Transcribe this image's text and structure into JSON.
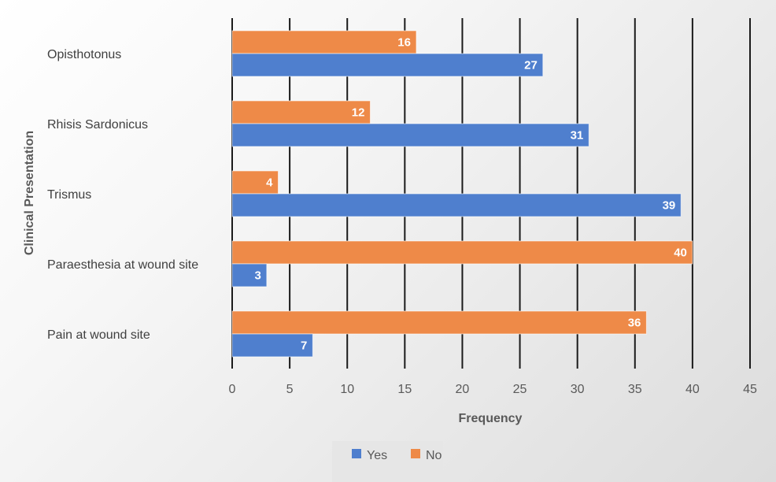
{
  "chart_data": {
    "type": "bar",
    "orientation": "horizontal",
    "categories": [
      "Opisthotonus",
      "Rhisis Sardonicus",
      "Trismus",
      "Paraesthesia at wound site",
      "Pain at wound site"
    ],
    "series": [
      {
        "name": "Yes",
        "values": [
          27,
          31,
          39,
          3,
          7
        ],
        "color": "#4f7fce"
      },
      {
        "name": "No",
        "values": [
          16,
          12,
          4,
          40,
          36
        ],
        "color": "#ee8a48"
      }
    ],
    "xlabel": "Frequency",
    "ylabel": "Clinical Presentation",
    "xlim": [
      0,
      45
    ],
    "xticks": [
      "0",
      "5",
      "10",
      "15",
      "20",
      "25",
      "30",
      "35",
      "40",
      "45"
    ],
    "grid": true,
    "legend_position": "bottom",
    "data_labels": true
  }
}
